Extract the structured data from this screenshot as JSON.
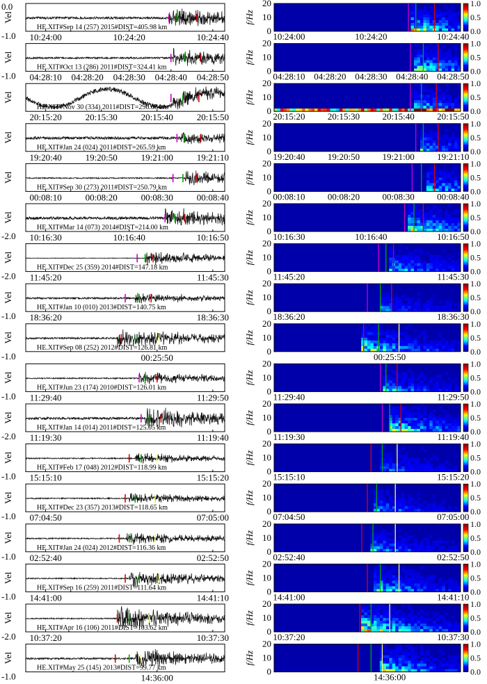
{
  "ylabel_left": "Vel",
  "ylabel_right": "f/Hz",
  "chart_data": {
    "type": "waveform-spectrogram-grid",
    "left_ylim": [
      -1.0,
      0.0
    ],
    "right_ylim": [
      0,
      20
    ],
    "right_yticks": [
      "0",
      "10",
      "20"
    ],
    "colorbar_ticks": [
      "0.0",
      "0.5",
      "1.0"
    ],
    "colorbar_range": [
      0.0,
      1.0
    ],
    "colormap": [
      "#00008f",
      "#0000ff",
      "#00ffff",
      "#ffff00",
      "#ff0000",
      "#800000"
    ],
    "rows": [
      {
        "station": "HE.XIT#Sep 14 (257) 2015#DIST=405.98 km",
        "ymin": "-1.0",
        "ymax": "0.0",
        "wave_ticks": [
          "10:24:00",
          "10:24:20",
          "10:24:40"
        ],
        "spec_ticks": [
          "10:24:00",
          "10:24:20",
          "10:24:40"
        ],
        "picks": [
          {
            "color": "#cc00cc",
            "t": 0.72
          },
          {
            "color": "#00aa00",
            "t": 0.76
          },
          {
            "color": "#dd0000",
            "t": 0.86
          }
        ],
        "onset": 0.72,
        "amp": 0.7,
        "pre": 0.04
      },
      {
        "station": "HE.XIT#Oct 13 (286) 2011#DIST=324.41 km",
        "ymin": "-1.0",
        "ymax": "",
        "wave_ticks": [
          "04:28:10",
          "04:28:20",
          "04:28:30",
          "04:28:40",
          "04:28:50"
        ],
        "spec_ticks": [
          "04:28:10",
          "04:28:20",
          "04:28:30",
          "04:28:40",
          "04:28:50"
        ],
        "picks": [
          {
            "color": "#cc00cc",
            "t": 0.73
          },
          {
            "color": "#00aa00",
            "t": 0.8
          },
          {
            "color": "#dd0000",
            "t": 0.88
          }
        ],
        "onset": 0.74,
        "amp": 0.65,
        "pre": 0.03
      },
      {
        "station": "HE.XIT#Nov 30 (334) 2011#DIST=296.08 km",
        "ymin": "",
        "ymax": "",
        "wave_ticks": [
          "20:15:20",
          "20:15:30",
          "20:15:40",
          "20:15:50"
        ],
        "spec_ticks": [
          "20:15:20",
          "20:15:30",
          "20:15:40",
          "20:15:50"
        ],
        "picks": [
          {
            "color": "#cc00cc",
            "t": 0.73
          },
          {
            "color": "#00aa00",
            "t": 0.79
          },
          {
            "color": "#dd0000",
            "t": 0.87
          }
        ],
        "onset": 0.74,
        "amp": 0.6,
        "pre": 0.08,
        "long_period": true
      },
      {
        "station": "HE.XIT#Jan 24 (024) 2011#DIST=265.59 km",
        "ymin": "",
        "ymax": "",
        "wave_ticks": [
          "19:20:40",
          "19:20:50",
          "19:21:00",
          "19:21:10"
        ],
        "spec_ticks": [
          "19:20:40",
          "19:20:50",
          "19:21:00",
          "19:21:10"
        ],
        "picks": [
          {
            "color": "#cc00cc",
            "t": 0.76
          },
          {
            "color": "#00aa00",
            "t": 0.8
          },
          {
            "color": "#dd0000",
            "t": 0.88
          }
        ],
        "onset": 0.78,
        "amp": 0.45,
        "pre": 0.05
      },
      {
        "station": "HE.XIT#Sep 30 (273) 2011#DIST=250.79 km",
        "ymin": "",
        "ymax": "",
        "wave_ticks": [
          "00:08:10",
          "00:08:20",
          "00:08:30",
          "00:08:40"
        ],
        "spec_ticks": [
          "00:08:10",
          "00:08:20",
          "00:08:30",
          "00:08:40"
        ],
        "picks": [
          {
            "color": "#cc00cc",
            "t": 0.74
          },
          {
            "color": "#00aa00",
            "t": 0.79
          },
          {
            "color": "#dd0000",
            "t": 0.86
          }
        ],
        "onset": 0.8,
        "amp": 0.55,
        "pre": 0.02
      },
      {
        "station": "HE.XIT#Mar 14 (073) 2014#DIST=214.00 km",
        "ymin": "-2.0",
        "ymax": "",
        "wave_ticks": [
          "10:16:30",
          "10:16:40",
          "10:16:50"
        ],
        "spec_ticks": [
          "10:16:30",
          "10:16:40",
          "10:16:50"
        ],
        "picks": [
          {
            "color": "#cc00cc",
            "t": 0.7
          },
          {
            "color": "#00aa00",
            "t": 0.75
          },
          {
            "color": "#dd0000",
            "t": 0.8
          }
        ],
        "onset": 0.7,
        "amp": 0.7,
        "pre": 0.05
      },
      {
        "station": "HE.XIT#Dec 25 (359) 2014#DIST=147.18 km",
        "ymin": "-2.0",
        "ymax": "",
        "wave_ticks": [
          "11:45:20",
          "11:45:30"
        ],
        "spec_ticks": [
          "11:45:20",
          "11:45:30"
        ],
        "picks": [
          {
            "color": "#cc00cc",
            "t": 0.56
          },
          {
            "color": "#00aa00",
            "t": 0.6
          },
          {
            "color": "#dd0000",
            "t": 0.64
          }
        ],
        "onset": 0.6,
        "amp": 0.5,
        "pre": 0.01
      },
      {
        "station": "HE.XIT#Jan 10 (010) 2013#DIST=140.75 km",
        "ymin": "-1.0",
        "ymax": "",
        "wave_ticks": [
          "18:36:20",
          "18:36:30"
        ],
        "spec_ticks": [
          "18:36:20",
          "18:36:30"
        ],
        "picks": [
          {
            "color": "#cc00cc",
            "t": 0.5
          },
          {
            "color": "#00aa00",
            "t": 0.57
          },
          {
            "color": "#dd0000",
            "t": 0.63
          }
        ],
        "onset": 0.55,
        "amp": 0.35,
        "pre": 0.03
      },
      {
        "station": "HE.XIT#Sep 08 (252) 2012#DIST=126.81 km",
        "ymin": "-1.0",
        "ymax": "",
        "wave_ticks": [
          "00:25:50"
        ],
        "spec_ticks": [
          "00:25:50"
        ],
        "picks": [
          {
            "color": "#dd0000",
            "t": 0.48
          },
          {
            "color": "#00aa00",
            "t": 0.56
          },
          {
            "color": "#ffff66",
            "t": 0.67
          }
        ],
        "onset": 0.46,
        "amp": 0.7,
        "pre": 0.03
      },
      {
        "station": "HE.XIT#Jun 23 (174) 2010#DIST=126.01 km",
        "ymin": "-1.0",
        "ymax": "",
        "wave_ticks": [
          "11:29:40",
          "11:29:50"
        ],
        "spec_ticks": [
          "11:29:40",
          "11:29:50"
        ],
        "picks": [
          {
            "color": "#cc00cc",
            "t": 0.57
          },
          {
            "color": "#00aa00",
            "t": 0.6
          },
          {
            "color": "#dd0000",
            "t": 0.66
          }
        ],
        "onset": 0.57,
        "amp": 0.45,
        "pre": 0.02
      },
      {
        "station": "HE.XIT#Jan 14 (014) 2011#DIST=125.05 km",
        "ymin": "-2.0",
        "ymax": "",
        "wave_ticks": [
          "11:19:30",
          "11:19:40"
        ],
        "spec_ticks": [
          "11:19:30",
          "11:19:40"
        ],
        "picks": [
          {
            "color": "#cc00cc",
            "t": 0.58
          },
          {
            "color": "#00aa00",
            "t": 0.62
          },
          {
            "color": "#dd0000",
            "t": 0.68
          }
        ],
        "onset": 0.6,
        "amp": 0.75,
        "pre": 0.04
      },
      {
        "station": "HE.XIT#Feb 17 (048) 2012#DIST=118.99 km",
        "ymin": "-1.0",
        "ymax": "",
        "wave_ticks": [
          "15:15:10",
          "15:15:20"
        ],
        "spec_ticks": [
          "15:15:10",
          "15:15:20"
        ],
        "picks": [
          {
            "color": "#dd0000",
            "t": 0.52
          },
          {
            "color": "#00aa00",
            "t": 0.58
          },
          {
            "color": "#ffff66",
            "t": 0.66
          }
        ],
        "onset": 0.55,
        "amp": 0.4,
        "pre": 0.02
      },
      {
        "station": "HE.XIT#Dec 23 (357) 2013#DIST=118.65 km",
        "ymin": "-1.0",
        "ymax": "",
        "wave_ticks": [
          "07:04:50",
          "07:05:00"
        ],
        "spec_ticks": [
          "07:04:50",
          "07:05:00"
        ],
        "picks": [
          {
            "color": "#dd0000",
            "t": 0.5
          },
          {
            "color": "#00aa00",
            "t": 0.55
          },
          {
            "color": "#ffff66",
            "t": 0.65
          }
        ],
        "onset": 0.52,
        "amp": 0.4,
        "pre": 0.02
      },
      {
        "station": "HE.XIT#Jan 24 (024) 2012#DIST=116.36 km",
        "ymin": "-1.0",
        "ymax": "",
        "wave_ticks": [
          "02:52:40",
          "02:52:50"
        ],
        "spec_ticks": [
          "02:52:40",
          "02:52:50"
        ],
        "picks": [
          {
            "color": "#dd0000",
            "t": 0.47
          },
          {
            "color": "#00aa00",
            "t": 0.53
          },
          {
            "color": "#ffff66",
            "t": 0.65
          }
        ],
        "onset": 0.5,
        "amp": 0.45,
        "pre": 0.02
      },
      {
        "station": "HE.XIT#Sep 16 (259) 2011#DIST=111.64 km",
        "ymin": "-1.0",
        "ymax": "",
        "wave_ticks": [
          "14:41:00",
          "14:41:10"
        ],
        "spec_ticks": [
          "14:41:00",
          "14:41:10"
        ],
        "picks": [
          {
            "color": "#dd0000",
            "t": 0.5
          },
          {
            "color": "#00aa00",
            "t": 0.57
          },
          {
            "color": "#ffff66",
            "t": 0.67
          }
        ],
        "onset": 0.52,
        "amp": 0.6,
        "pre": 0.02
      },
      {
        "station": "HE.XIT#Apr 16 (106) 2011#DIST=103.62 km",
        "ymin": "-2.0",
        "ymax": "",
        "wave_ticks": [
          "10:37:20",
          "10:37:30"
        ],
        "spec_ticks": [
          "10:37:20",
          "10:37:30"
        ],
        "picks": [
          {
            "color": "#dd0000",
            "t": 0.46
          },
          {
            "color": "#00aa00",
            "t": 0.52
          },
          {
            "color": "#ffff66",
            "t": 0.62
          }
        ],
        "onset": 0.46,
        "amp": 0.85,
        "pre": 0.02
      },
      {
        "station": "HE.XIT#May 25 (145) 2013#DIST=99.77 km",
        "ymin": "-1.0",
        "ymax": "",
        "wave_ticks": [
          "14:36:00"
        ],
        "spec_ticks": [
          "14:36:00"
        ],
        "picks": [
          {
            "color": "#dd0000",
            "t": 0.45
          },
          {
            "color": "#00aa00",
            "t": 0.52
          },
          {
            "color": "#ffff66",
            "t": 0.58
          }
        ],
        "onset": 0.55,
        "amp": 0.7,
        "pre": 0.03
      }
    ]
  }
}
